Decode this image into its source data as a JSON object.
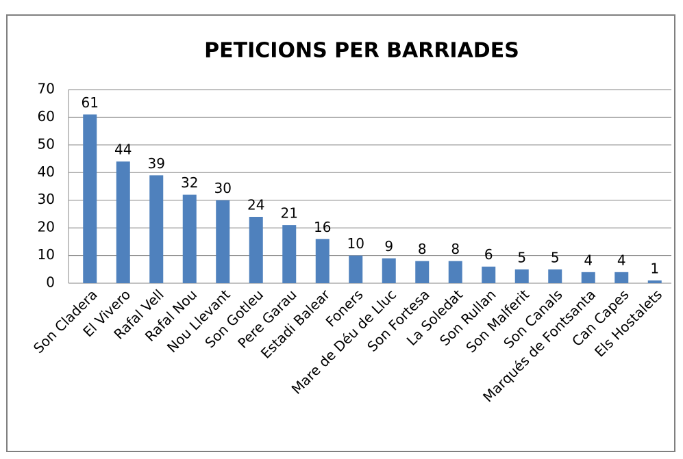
{
  "chart_data": {
    "type": "bar",
    "title": "PETICIONS PER BARRIADES",
    "categories": [
      "Son Cladera",
      "El Vivero",
      "Rafal Vell",
      "Rafal Nou",
      "Nou Llevant",
      "Son Gotleu",
      "Pere Garau",
      "Estadi Balear",
      "Foners",
      "Mare de Déu de Lluc",
      "Son Fortesa",
      "La Soledat",
      "Son Rullan",
      "Son Malferit",
      "Son Canals",
      "Marqués de Fontsanta",
      "Can Capes",
      "Els Hostalets"
    ],
    "values": [
      61,
      44,
      39,
      32,
      30,
      24,
      21,
      16,
      10,
      9,
      8,
      8,
      6,
      5,
      5,
      4,
      4,
      1
    ],
    "color": "#4f81bd",
    "ylim": [
      0,
      70
    ],
    "yticks": [
      0,
      10,
      20,
      30,
      40,
      50,
      60,
      70
    ],
    "grid": true
  }
}
